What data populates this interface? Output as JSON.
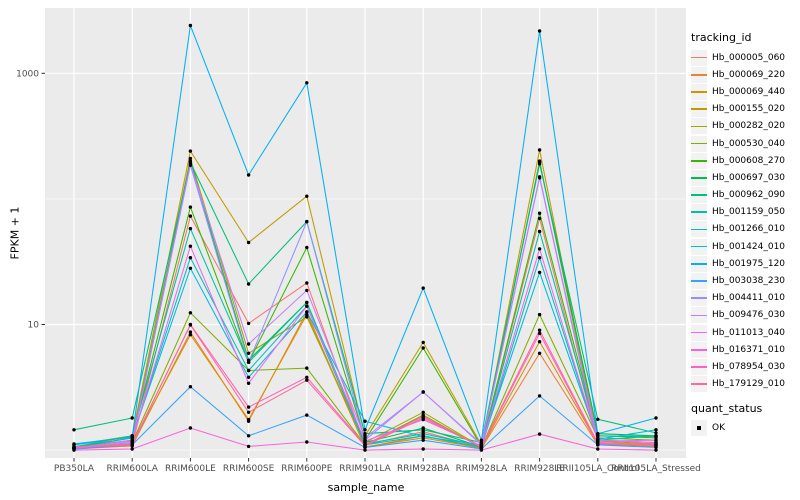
{
  "legend": {
    "tracking_title": "tracking_id",
    "quant_title": "quant_status",
    "quant_ok_label": "OK",
    "key_bg": "#F2F2F2"
  },
  "colors": {
    "panel_bg": "#EBEBEB",
    "grid": "#FFFFFF",
    "axis_text": "#4D4D4D",
    "tick_mark": "#333333",
    "point": "#000000"
  },
  "chart_data": {
    "type": "line",
    "title": "",
    "xlabel": "sample_name",
    "ylabel": "FPKM + 1",
    "y_scale": "log10",
    "ylim": [
      0.93,
      3300
    ],
    "grid": true,
    "legend_position": "right",
    "y_ticks": [
      {
        "label": "1000",
        "value": 1000
      },
      {
        "label": "10",
        "value": 10
      }
    ],
    "y_minor_gridlines": [
      1,
      100
    ],
    "y_major_gridlines": [
      10,
      1000
    ],
    "categories": [
      "PB350LA",
      "RRIM600LA",
      "RRIM600LE",
      "RRIM600SE",
      "RRIM600PE",
      "RRIM901LA",
      "RRIM928BA",
      "RRIM928LA",
      "RRIM928LE",
      "RRII105LA_Control",
      "RRII105LA_Stressed"
    ],
    "series": [
      {
        "name": "Hb_000005_060",
        "color": "#F8766D",
        "values": [
          1.05,
          1.1,
          73,
          10.2,
          21.4,
          1.1,
          1.4,
          1.05,
          70,
          1.15,
          1.1
        ]
      },
      {
        "name": "Hb_000069_220",
        "color": "#EA8331",
        "values": [
          1.02,
          1.08,
          8.7,
          1.7,
          12.6,
          1.05,
          1.3,
          1.03,
          5.9,
          1.1,
          1.08
        ]
      },
      {
        "name": "Hb_000069_440",
        "color": "#D89000",
        "values": [
          1.03,
          1.12,
          8.3,
          1.75,
          12.0,
          1.06,
          1.25,
          1.04,
          7.3,
          1.12,
          1.06
        ]
      },
      {
        "name": "Hb_000155_020",
        "color": "#C09B00",
        "values": [
          1.1,
          1.3,
          240,
          45,
          105,
          1.3,
          7.2,
          1.1,
          245,
          1.2,
          1.15
        ]
      },
      {
        "name": "Hb_000282_020",
        "color": "#A3A500",
        "values": [
          1.05,
          1.2,
          210,
          5.9,
          11.5,
          1.15,
          2.0,
          1.06,
          200,
          1.18,
          1.12
        ]
      },
      {
        "name": "Hb_000530_040",
        "color": "#7CAE00",
        "values": [
          1.04,
          1.15,
          12.4,
          4.3,
          4.5,
          1.1,
          1.9,
          1.05,
          12,
          1.25,
          1.2
        ]
      },
      {
        "name": "Hb_000608_270",
        "color": "#39B600",
        "values": [
          1.06,
          1.25,
          86,
          5.0,
          41,
          1.2,
          6.5,
          1.07,
          77,
          1.3,
          1.25
        ]
      },
      {
        "name": "Hb_000697_030",
        "color": "#00BB4E",
        "values": [
          1.05,
          1.2,
          200,
          5.2,
          15,
          1.15,
          1.5,
          1.06,
          196,
          1.35,
          1.3
        ]
      },
      {
        "name": "Hb_000962_090",
        "color": "#00BF7D",
        "values": [
          1.45,
          1.8,
          195,
          21,
          66,
          1.35,
          1.45,
          1.15,
          190,
          1.76,
          1.37
        ]
      },
      {
        "name": "Hb_001159_050",
        "color": "#00C1A3",
        "values": [
          1.06,
          1.3,
          58,
          5.0,
          15,
          1.12,
          1.35,
          1.08,
          55,
          1.3,
          1.28
        ]
      },
      {
        "name": "Hb_001266_010",
        "color": "#00BFC4",
        "values": [
          1.04,
          1.25,
          34,
          4.3,
          14,
          1.1,
          1.3,
          1.05,
          34,
          1.2,
          1.3
        ]
      },
      {
        "name": "Hb_001424_010",
        "color": "#00BAE0",
        "values": [
          1.12,
          1.27,
          28,
          3.8,
          12.6,
          1.7,
          1.28,
          1.1,
          26,
          1.22,
          1.45
        ]
      },
      {
        "name": "Hb_001975_120",
        "color": "#00B0F6",
        "values": [
          1.1,
          1.28,
          2400,
          155,
          840,
          1.45,
          19.5,
          1.2,
          2170,
          1.35,
          1.8
        ]
      },
      {
        "name": "Hb_003038_230",
        "color": "#35A2FF",
        "values": [
          1.02,
          1.1,
          3.2,
          1.3,
          1.9,
          1.05,
          1.2,
          1.02,
          2.7,
          1.1,
          1.05
        ]
      },
      {
        "name": "Hb_004411_010",
        "color": "#9590FF",
        "values": [
          1.03,
          1.15,
          185,
          5.0,
          66,
          1.2,
          2.9,
          1.1,
          147,
          1.15,
          1.1
        ]
      },
      {
        "name": "Hb_009476_030",
        "color": "#C77CFF",
        "values": [
          1.05,
          1.18,
          190,
          7.0,
          18.7,
          1.25,
          2.9,
          1.12,
          150,
          1.2,
          1.15
        ]
      },
      {
        "name": "Hb_011013_040",
        "color": "#E76BF3",
        "values": [
          1.04,
          1.2,
          42,
          3.4,
          14,
          1.18,
          1.75,
          1.08,
          40,
          1.18,
          1.2
        ]
      },
      {
        "name": "Hb_016371_010",
        "color": "#FA62DB",
        "values": [
          1.0,
          1.02,
          1.5,
          1.07,
          1.16,
          1.0,
          1.02,
          1.0,
          1.34,
          1.02,
          1.0
        ]
      },
      {
        "name": "Hb_078954_030",
        "color": "#FF62BC",
        "values": [
          1.05,
          1.1,
          10,
          2.2,
          3.8,
          1.1,
          1.85,
          1.05,
          8.5,
          1.12,
          1.1
        ]
      },
      {
        "name": "Hb_179129_010",
        "color": "#FF6A98",
        "values": [
          1.06,
          1.12,
          9.9,
          2.0,
          3.6,
          1.08,
          1.8,
          1.06,
          9.0,
          1.14,
          1.12
        ]
      }
    ]
  }
}
